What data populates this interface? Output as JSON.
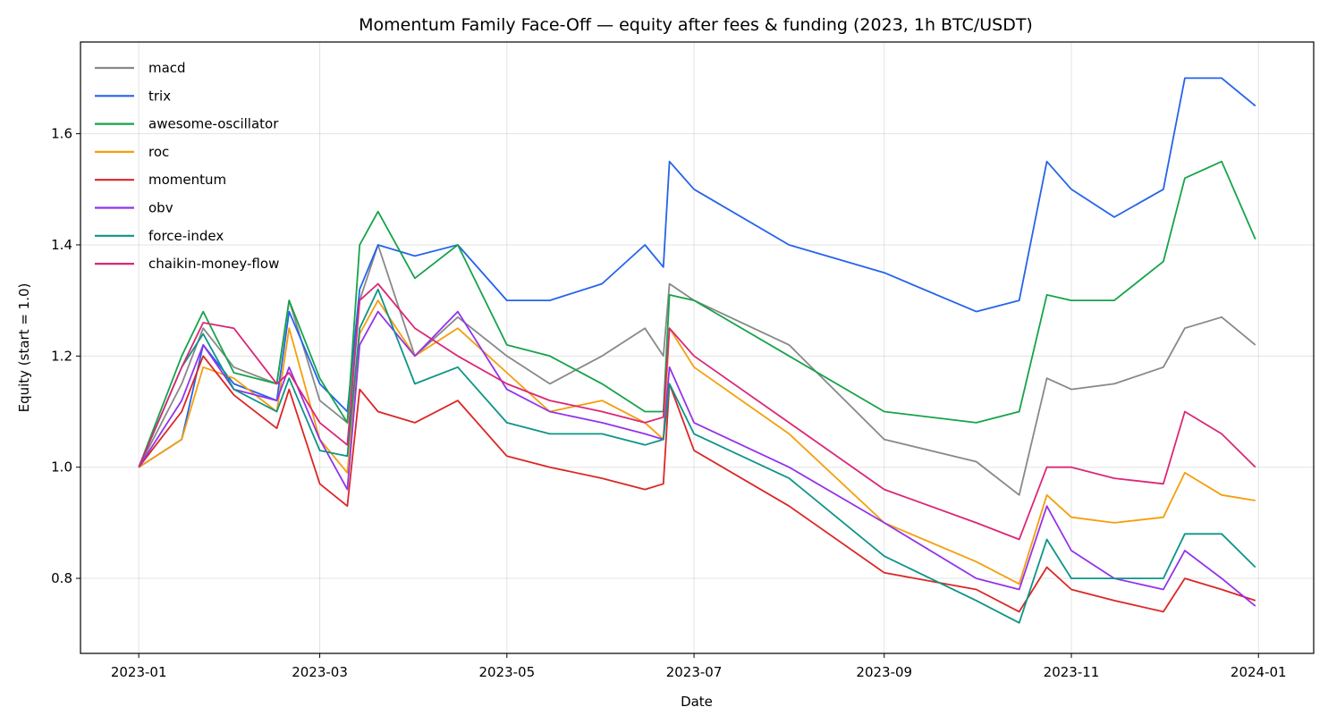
{
  "chart_data": {
    "type": "line",
    "title": "Momentum Family Face-Off — equity after fees & funding (2023, 1h BTC/USDT)",
    "xlabel": "Date",
    "ylabel": "Equity (start = 1.0)",
    "xlim": [
      "2022-12-13",
      "2024-01-19"
    ],
    "ylim": [
      0.665,
      1.765
    ],
    "x_ticks": [
      "2023-01-01",
      "2023-03-01",
      "2023-05-01",
      "2023-07-01",
      "2023-09-01",
      "2023-11-01",
      "2024-01-01"
    ],
    "x_tick_labels": [
      "2023-01",
      "2023-03",
      "2023-05",
      "2023-07",
      "2023-09",
      "2023-11",
      "2024-01"
    ],
    "y_ticks": [
      0.8,
      1.0,
      1.2,
      1.4,
      1.6
    ],
    "y_tick_labels": [
      "0.8",
      "1.0",
      "1.2",
      "1.4",
      "1.6"
    ],
    "grid": true,
    "legend_position": "top-left",
    "x": [
      "2023-01-01",
      "2023-01-15",
      "2023-01-22",
      "2023-02-01",
      "2023-02-15",
      "2023-02-19",
      "2023-03-01",
      "2023-03-10",
      "2023-03-14",
      "2023-03-20",
      "2023-04-01",
      "2023-04-15",
      "2023-05-01",
      "2023-05-15",
      "2023-06-01",
      "2023-06-15",
      "2023-06-21",
      "2023-06-23",
      "2023-07-01",
      "2023-08-01",
      "2023-09-01",
      "2023-10-01",
      "2023-10-15",
      "2023-10-24",
      "2023-11-01",
      "2023-11-15",
      "2023-12-01",
      "2023-12-08",
      "2023-12-20",
      "2023-12-31"
    ],
    "series": [
      {
        "name": "macd",
        "color": "#888888",
        "values": [
          1.0,
          1.15,
          1.25,
          1.18,
          1.15,
          1.3,
          1.12,
          1.08,
          1.3,
          1.4,
          1.2,
          1.27,
          1.2,
          1.15,
          1.2,
          1.25,
          1.2,
          1.33,
          1.3,
          1.22,
          1.05,
          1.01,
          0.95,
          1.16,
          1.14,
          1.15,
          1.18,
          1.25,
          1.27,
          1.22
        ]
      },
      {
        "name": "trix",
        "color": "#2563eb",
        "values": [
          1.0,
          1.05,
          1.22,
          1.15,
          1.12,
          1.28,
          1.15,
          1.1,
          1.32,
          1.4,
          1.38,
          1.4,
          1.3,
          1.3,
          1.33,
          1.4,
          1.36,
          1.55,
          1.5,
          1.4,
          1.35,
          1.28,
          1.3,
          1.55,
          1.5,
          1.45,
          1.5,
          1.7,
          1.7,
          1.65
        ]
      },
      {
        "name": "awesome-oscillator",
        "color": "#16a34a",
        "values": [
          1.0,
          1.2,
          1.28,
          1.17,
          1.15,
          1.3,
          1.16,
          1.08,
          1.4,
          1.46,
          1.34,
          1.4,
          1.22,
          1.2,
          1.15,
          1.1,
          1.1,
          1.31,
          1.3,
          1.2,
          1.1,
          1.08,
          1.1,
          1.31,
          1.3,
          1.3,
          1.37,
          1.52,
          1.55,
          1.41
        ]
      },
      {
        "name": "roc",
        "color": "#f59e0b",
        "values": [
          1.0,
          1.05,
          1.18,
          1.16,
          1.1,
          1.25,
          1.05,
          0.99,
          1.24,
          1.3,
          1.2,
          1.25,
          1.17,
          1.1,
          1.12,
          1.08,
          1.05,
          1.25,
          1.18,
          1.06,
          0.9,
          0.83,
          0.79,
          0.95,
          0.91,
          0.9,
          0.91,
          0.99,
          0.95,
          0.94
        ]
      },
      {
        "name": "momentum",
        "color": "#dc2626",
        "values": [
          1.0,
          1.1,
          1.2,
          1.13,
          1.07,
          1.14,
          0.97,
          0.93,
          1.14,
          1.1,
          1.08,
          1.12,
          1.02,
          1.0,
          0.98,
          0.96,
          0.97,
          1.15,
          1.03,
          0.93,
          0.81,
          0.78,
          0.74,
          0.82,
          0.78,
          0.76,
          0.74,
          0.8,
          0.78,
          0.76
        ]
      },
      {
        "name": "obv",
        "color": "#9333ea",
        "values": [
          1.0,
          1.12,
          1.22,
          1.14,
          1.12,
          1.18,
          1.05,
          0.96,
          1.22,
          1.28,
          1.2,
          1.28,
          1.14,
          1.1,
          1.08,
          1.06,
          1.05,
          1.18,
          1.08,
          1.0,
          0.9,
          0.8,
          0.78,
          0.93,
          0.85,
          0.8,
          0.78,
          0.85,
          0.8,
          0.75
        ]
      },
      {
        "name": "force-index",
        "color": "#0d9488",
        "values": [
          1.0,
          1.18,
          1.24,
          1.14,
          1.1,
          1.16,
          1.03,
          1.02,
          1.25,
          1.32,
          1.15,
          1.18,
          1.08,
          1.06,
          1.06,
          1.04,
          1.05,
          1.15,
          1.06,
          0.98,
          0.84,
          0.76,
          0.72,
          0.87,
          0.8,
          0.8,
          0.8,
          0.88,
          0.88,
          0.82
        ]
      },
      {
        "name": "chaikin-money-flow",
        "color": "#db2777",
        "values": [
          1.0,
          1.18,
          1.26,
          1.25,
          1.15,
          1.17,
          1.08,
          1.04,
          1.3,
          1.33,
          1.25,
          1.2,
          1.15,
          1.12,
          1.1,
          1.08,
          1.09,
          1.25,
          1.2,
          1.08,
          0.96,
          0.9,
          0.87,
          1.0,
          1.0,
          0.98,
          0.97,
          1.1,
          1.06,
          1.0
        ]
      }
    ]
  }
}
